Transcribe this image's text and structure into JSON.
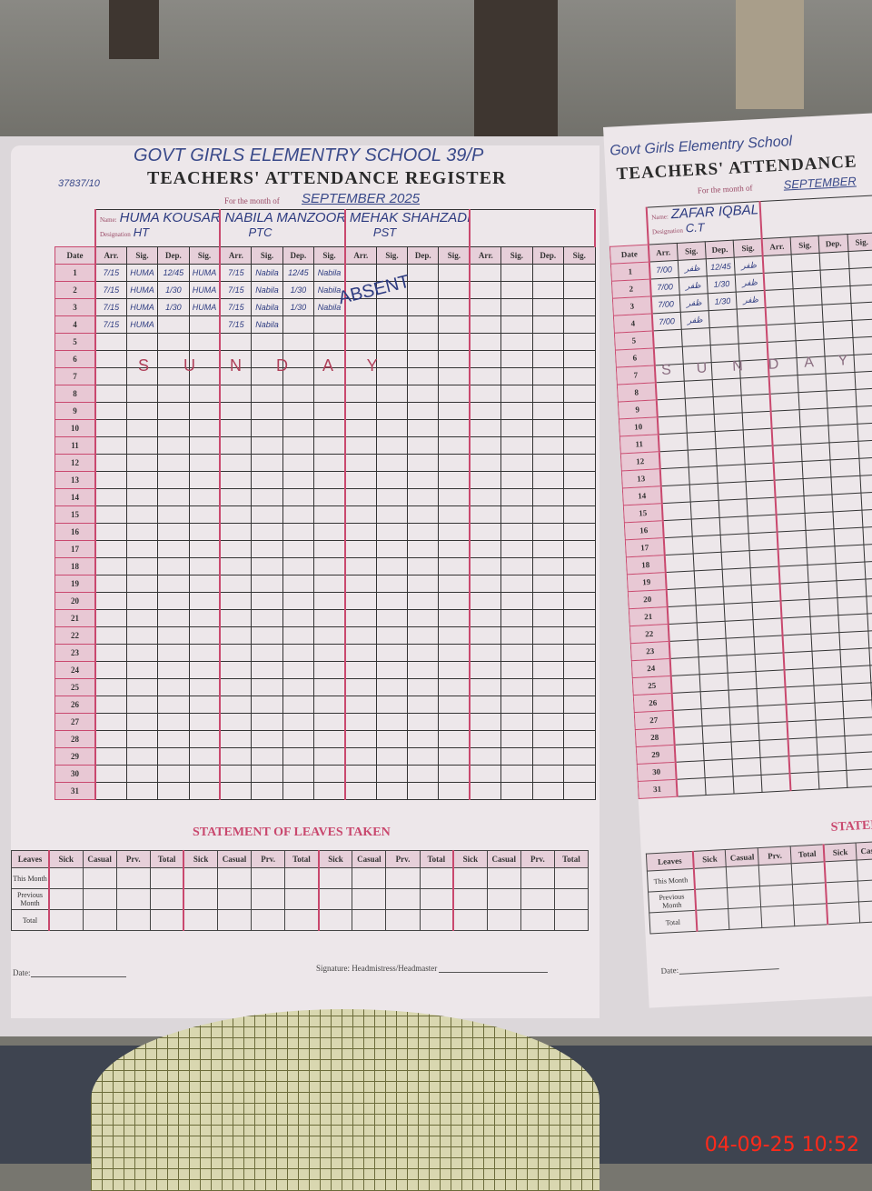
{
  "photo_timestamp": "04-09-25  10:52",
  "left_page": {
    "school_name": "GOVT GIRLS ELEMENTRY SCHOOL 39/P",
    "code": "37837/10",
    "title": "TEACHERS' ATTENDANCE REGISTER",
    "month_label": "For the month of",
    "month_value": "SEPTEMBER 2025",
    "name_label": "Name:",
    "designation_label": "Designation",
    "date_header": "Date",
    "column_headers": [
      "Arr.",
      "Sig.",
      "Dep.",
      "Sig."
    ],
    "teachers": [
      {
        "name": "HUMA KOUSAR",
        "designation": "HT",
        "rows": [
          [
            "7/15",
            "HUMA",
            "12/45",
            "HUMA"
          ],
          [
            "7/15",
            "HUMA",
            "1/30",
            "HUMA"
          ],
          [
            "7/15",
            "HUMA",
            "1/30",
            "HUMA"
          ],
          [
            "7/15",
            "HUMA",
            "",
            ""
          ]
        ]
      },
      {
        "name": "NABILA MANZOOR",
        "designation": "PTC",
        "rows": [
          [
            "7/15",
            "Nabila",
            "12/45",
            "Nabila"
          ],
          [
            "7/15",
            "Nabila",
            "1/30",
            "Nabila"
          ],
          [
            "7/15",
            "Nabila",
            "1/30",
            "Nabila"
          ],
          [
            "7/15",
            "Nabila",
            "",
            ""
          ]
        ]
      },
      {
        "name": "MEHAK SHAHZADI",
        "designation": "PST",
        "rows": [],
        "note": "ABSENT"
      },
      {
        "name": "",
        "designation": "",
        "rows": []
      }
    ],
    "sunday_text": "SUNDAY",
    "leaves": {
      "title": "STATEMENT OF LEAVES TAKEN",
      "headers": [
        "Sick",
        "Casual",
        "Prv.",
        "Total"
      ],
      "row_labels": [
        "Leaves",
        "This Month",
        "Previous Month",
        "Total"
      ]
    },
    "footer": {
      "date_label": "Date:",
      "signature_label": "Signature: Headmistress/Headmaster"
    }
  },
  "right_page": {
    "school_name": "Govt Girls Elementry School",
    "title": "TEACHERS' ATTENDANCE",
    "month_label": "For the month of",
    "month_value": "SEPTEMBER",
    "name_label": "Name:",
    "designation_label": "Designation",
    "date_header": "Date",
    "column_headers": [
      "Arr.",
      "Sig.",
      "Dep.",
      "Sig."
    ],
    "teachers": [
      {
        "name": "ZAFAR IQBAL",
        "designation": "C.T",
        "rows": [
          [
            "7/00",
            "ظفر",
            "12/45",
            "ظفر"
          ],
          [
            "7/00",
            "ظفر",
            "1/30",
            "ظفر"
          ],
          [
            "7/00",
            "ظفر",
            "1/30",
            "ظفر"
          ],
          [
            "7/00",
            "ظفر",
            "",
            ""
          ]
        ]
      },
      {
        "name": "",
        "designation": "",
        "rows": []
      },
      {
        "name": "",
        "designation": "",
        "rows": []
      }
    ],
    "sunday_text": "SUNDAY",
    "leaves": {
      "title": "STATEMEN",
      "headers": [
        "Sick",
        "Casual",
        "Prv.",
        "Total"
      ],
      "row_labels": [
        "Leaves",
        "This Month",
        "Previous Month",
        "Total"
      ]
    },
    "footer": {
      "date_label": "Date:"
    }
  },
  "colors": {
    "rule": "#c9486e",
    "ink": "#2d3b80",
    "paper": "#ede7ea",
    "timestamp": "#ff2a1a"
  }
}
